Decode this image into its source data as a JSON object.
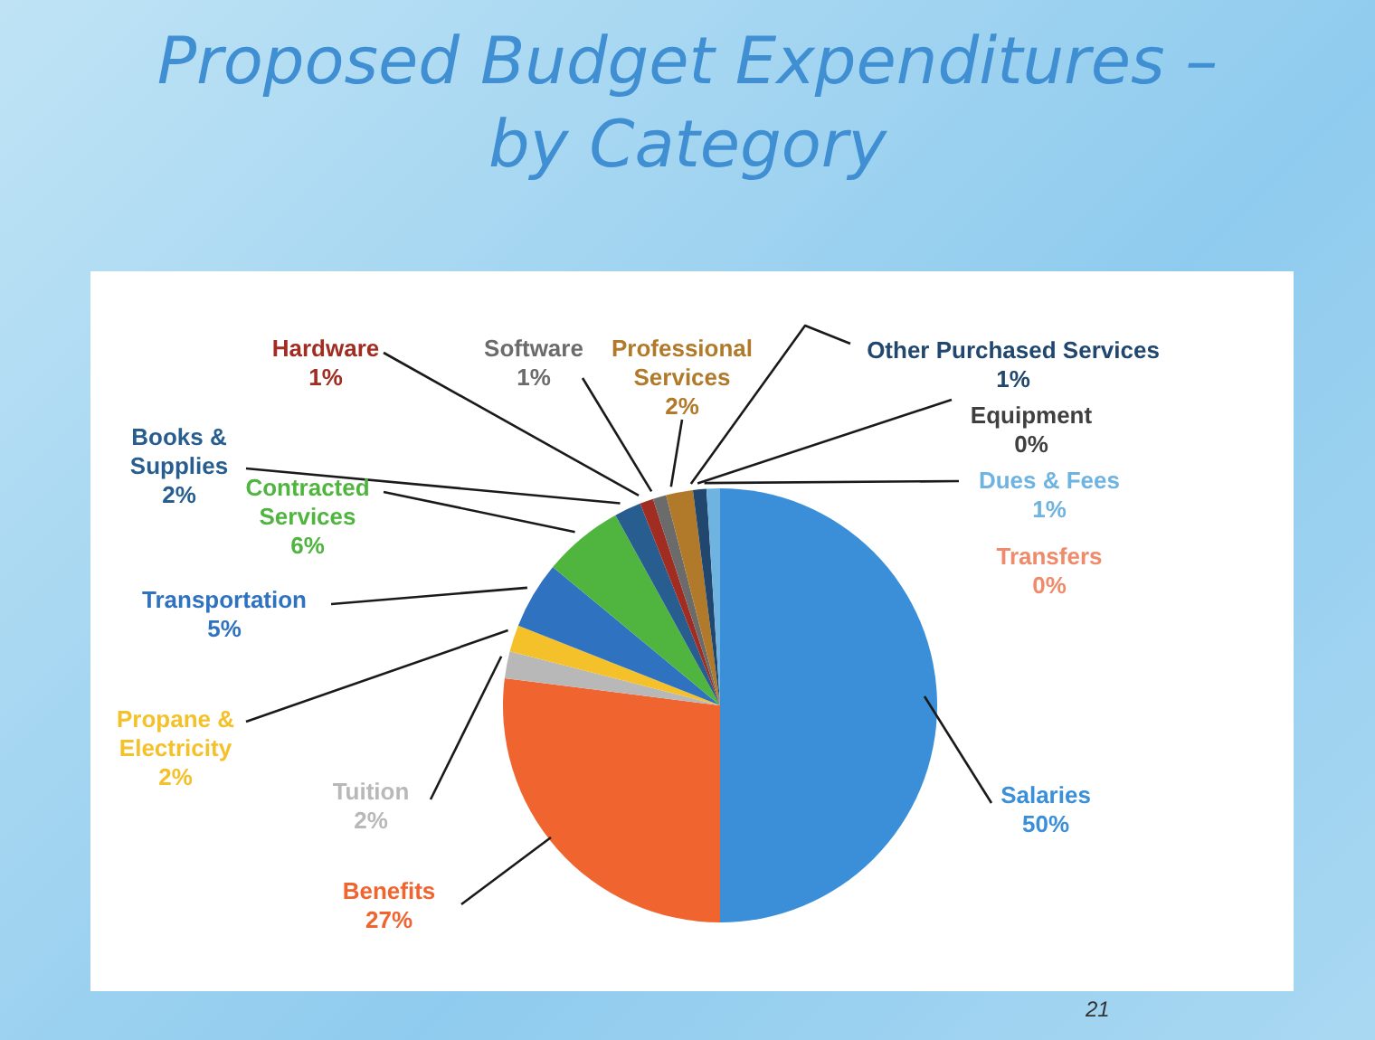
{
  "chart_data": {
    "type": "pie",
    "title": "Proposed Budget Expenditures – by Category",
    "categories": [
      "Salaries",
      "Benefits",
      "Tuition",
      "Propane & Electricity",
      "Transportation",
      "Contracted Services",
      "Books & Supplies",
      "Hardware",
      "Software",
      "Professional Services",
      "Other Purchased Services",
      "Equipment",
      "Dues & Fees",
      "Transfers"
    ],
    "values": [
      50,
      27,
      2,
      2,
      5,
      6,
      2,
      1,
      1,
      2,
      1,
      0,
      1,
      0
    ],
    "value_labels": [
      "50%",
      "27%",
      "2%",
      "2%",
      "5%",
      "6%",
      "2%",
      "1%",
      "1%",
      "2%",
      "1%",
      "0%",
      "1%",
      "0%"
    ],
    "colors": [
      "#3a8fd8",
      "#f0652f",
      "#b8b8b8",
      "#f5c12a",
      "#2f72c0",
      "#4fb53e",
      "#275d8f",
      "#a12d22",
      "#6b6b6b",
      "#b07a2a",
      "#21476e",
      "#3f3f3f",
      "#6fb3e0",
      "#ef8a6a"
    ],
    "annotations": [
      "21"
    ]
  }
}
